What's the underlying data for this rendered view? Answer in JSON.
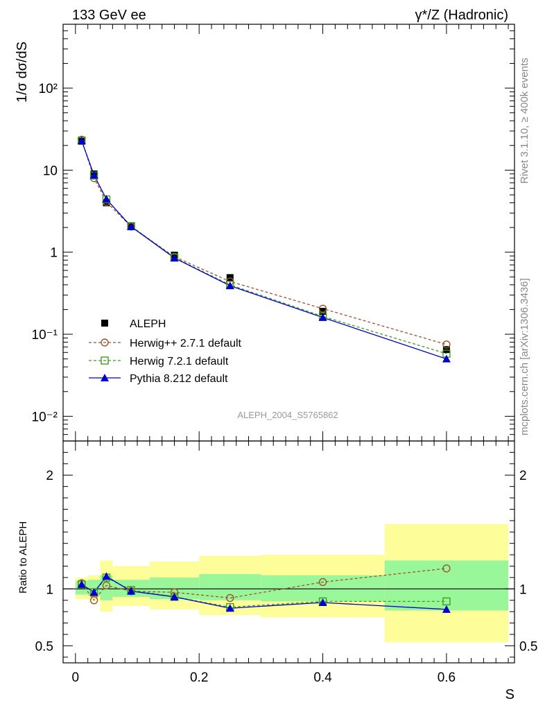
{
  "header": {
    "left_label": "133 GeV ee",
    "right_label": "γ*/Z (Hadronic)"
  },
  "side_labels": {
    "rivet": "Rivet 3.1.10, ≥ 400k events",
    "source": "mcplots.cern.ch [arXiv:1306.3436]"
  },
  "colors": {
    "aleph": "#000000",
    "herwigpp": "#a0522d",
    "herwig7": "#3d9e1f",
    "pythia": "#0000cc",
    "band_inner": "#99f799",
    "band_outer": "#fdfd99"
  },
  "chart_data": [
    {
      "type": "scatter",
      "title": "",
      "xlabel": "S",
      "ylabel": "1/σ  dσ/dS",
      "yscale": "log",
      "xlim": [
        -0.02,
        0.71
      ],
      "ylim": [
        0.005,
        600
      ],
      "y_tick_labels": [
        "10⁻²",
        "10⁻¹",
        "1",
        "10",
        "10²"
      ],
      "watermark": "ALEPH_2004_S5765862",
      "legend_position": "bottom-left",
      "x": [
        0.01,
        0.03,
        0.05,
        0.09,
        0.16,
        0.25,
        0.4,
        0.6
      ],
      "series": [
        {
          "name": "ALEPH",
          "style": "data",
          "values": [
            22.5,
            9.0,
            4.0,
            2.1,
            0.92,
            0.49,
            0.19,
            0.065
          ]
        },
        {
          "name": "Herwig++ 2.7.1 default",
          "style": "circle-dashed",
          "values": [
            23.5,
            8.0,
            4.1,
            2.05,
            0.88,
            0.44,
            0.205,
            0.075
          ]
        },
        {
          "name": "Herwig 7.2.1 default",
          "style": "square-dashed",
          "values": [
            23.0,
            8.6,
            4.4,
            2.08,
            0.86,
            0.4,
            0.165,
            0.058
          ]
        },
        {
          "name": "Pythia 8.212 default",
          "style": "triangle-solid",
          "values": [
            22.8,
            8.7,
            4.45,
            2.05,
            0.85,
            0.39,
            0.16,
            0.05
          ]
        }
      ]
    },
    {
      "type": "scatter",
      "title": "",
      "xlabel": "S",
      "ylabel": "Ratio to ALEPH",
      "xlim": [
        -0.02,
        0.71
      ],
      "ylim": [
        0.35,
        2.3
      ],
      "x_tick_labels": [
        "0",
        "0.2",
        "0.4",
        "0.6"
      ],
      "y_tick_labels": [
        "0.5",
        "1",
        "2"
      ],
      "bins": [
        {
          "lo": 0.0,
          "hi": 0.02,
          "inner": [
            0.95,
            1.07
          ],
          "outer": [
            0.91,
            1.1
          ]
        },
        {
          "lo": 0.02,
          "hi": 0.04,
          "inner": [
            0.94,
            1.08
          ],
          "outer": [
            0.9,
            1.12
          ]
        },
        {
          "lo": 0.04,
          "hi": 0.06,
          "inner": [
            0.9,
            1.12
          ],
          "outer": [
            0.8,
            1.25
          ]
        },
        {
          "lo": 0.06,
          "hi": 0.12,
          "inner": [
            0.93,
            1.08
          ],
          "outer": [
            0.85,
            1.2
          ]
        },
        {
          "lo": 0.12,
          "hi": 0.2,
          "inner": [
            0.91,
            1.1
          ],
          "outer": [
            0.82,
            1.24
          ]
        },
        {
          "lo": 0.2,
          "hi": 0.3,
          "inner": [
            0.9,
            1.13
          ],
          "outer": [
            0.77,
            1.29
          ]
        },
        {
          "lo": 0.3,
          "hi": 0.5,
          "inner": [
            0.89,
            1.12
          ],
          "outer": [
            0.75,
            1.3
          ]
        },
        {
          "lo": 0.5,
          "hi": 0.7,
          "inner": [
            0.81,
            1.25
          ],
          "outer": [
            0.53,
            1.57
          ]
        }
      ],
      "x": [
        0.01,
        0.03,
        0.05,
        0.09,
        0.16,
        0.25,
        0.4,
        0.6
      ],
      "series": [
        {
          "name": "Herwig++ 2.7.1 default",
          "style": "circle-dashed",
          "values": [
            1.05,
            0.9,
            1.03,
            0.98,
            0.97,
            0.92,
            1.06,
            1.18
          ]
        },
        {
          "name": "Herwig 7.2.1 default",
          "style": "square-dashed",
          "values": [
            1.04,
            0.97,
            1.1,
            0.99,
            0.93,
            0.84,
            0.89,
            0.89
          ]
        },
        {
          "name": "Pythia 8.212 default",
          "style": "triangle-solid",
          "values": [
            1.04,
            0.97,
            1.11,
            0.98,
            0.93,
            0.83,
            0.88,
            0.82
          ]
        }
      ]
    }
  ]
}
